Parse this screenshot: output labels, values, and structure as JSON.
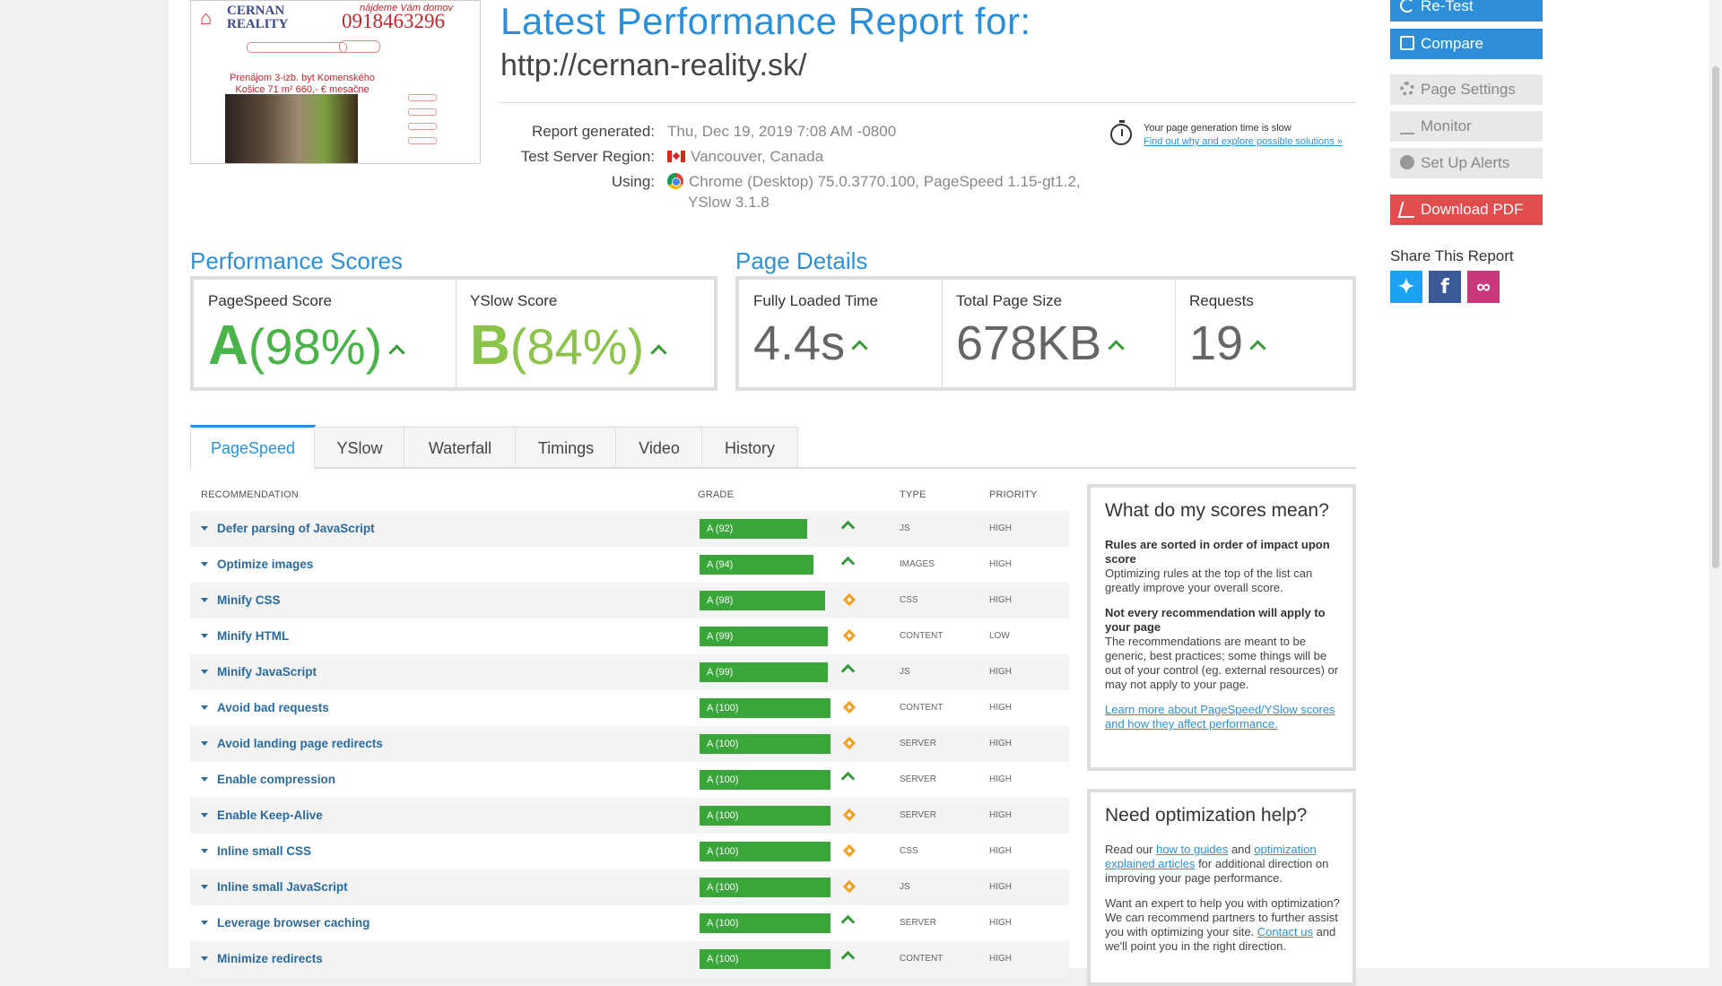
{
  "thumbnail": {
    "brand": "CERNAN REALITY",
    "tagline": "nájdeme Vám domov",
    "phone": "0918463296",
    "listing": "Prenájom 3-izb. byt Komenského Košice 71 m² 660,- € mesačne"
  },
  "header": {
    "title": "Latest Performance Report for:",
    "url": "http://cernan-reality.sk/",
    "report_generated_label": "Report generated:",
    "report_generated_value": "Thu, Dec 19, 2019 7:08 AM -0800",
    "region_label": "Test Server Region:",
    "region_value": "Vancouver, Canada",
    "using_label": "Using:",
    "using_value_line1": "Chrome (Desktop) 75.0.3770.100, PageSpeed 1.15-gt1.2,",
    "using_value_line2": "YSlow 3.1.8",
    "slow_notice": "Your page generation time is slow",
    "slow_link": "Find out why and explore possible solutions »"
  },
  "performance": {
    "title": "Performance Scores",
    "pagespeed_label": "PageSpeed Score",
    "pagespeed_grade": "A",
    "pagespeed_pct": "(98%)",
    "yslow_label": "YSlow Score",
    "yslow_grade": "B",
    "yslow_pct": "(84%)"
  },
  "details": {
    "title": "Page Details",
    "loaded_label": "Fully Loaded Time",
    "loaded_value": "4.4s",
    "size_label": "Total Page Size",
    "size_value": "678KB",
    "requests_label": "Requests",
    "requests_value": "19"
  },
  "tabs": [
    "PageSpeed",
    "YSlow",
    "Waterfall",
    "Timings",
    "Video",
    "History"
  ],
  "table": {
    "headers": {
      "recommendation": "RECOMMENDATION",
      "grade": "GRADE",
      "type": "TYPE",
      "priority": "PRIORITY"
    },
    "rows": [
      {
        "rec": "Defer parsing of JavaScript",
        "grade": "A (92)",
        "score": 92,
        "trend": "up",
        "type": "JS",
        "priority": "HIGH"
      },
      {
        "rec": "Optimize images",
        "grade": "A (94)",
        "score": 94,
        "trend": "up",
        "type": "IMAGES",
        "priority": "HIGH"
      },
      {
        "rec": "Minify CSS",
        "grade": "A (98)",
        "score": 98,
        "trend": "same",
        "type": "CSS",
        "priority": "HIGH"
      },
      {
        "rec": "Minify HTML",
        "grade": "A (99)",
        "score": 99,
        "trend": "same",
        "type": "CONTENT",
        "priority": "LOW"
      },
      {
        "rec": "Minify JavaScript",
        "grade": "A (99)",
        "score": 99,
        "trend": "up",
        "type": "JS",
        "priority": "HIGH"
      },
      {
        "rec": "Avoid bad requests",
        "grade": "A (100)",
        "score": 100,
        "trend": "same",
        "type": "CONTENT",
        "priority": "HIGH"
      },
      {
        "rec": "Avoid landing page redirects",
        "grade": "A (100)",
        "score": 100,
        "trend": "same",
        "type": "SERVER",
        "priority": "HIGH"
      },
      {
        "rec": "Enable compression",
        "grade": "A (100)",
        "score": 100,
        "trend": "up",
        "type": "SERVER",
        "priority": "HIGH"
      },
      {
        "rec": "Enable Keep-Alive",
        "grade": "A (100)",
        "score": 100,
        "trend": "same",
        "type": "SERVER",
        "priority": "HIGH"
      },
      {
        "rec": "Inline small CSS",
        "grade": "A (100)",
        "score": 100,
        "trend": "same",
        "type": "CSS",
        "priority": "HIGH"
      },
      {
        "rec": "Inline small JavaScript",
        "grade": "A (100)",
        "score": 100,
        "trend": "same",
        "type": "JS",
        "priority": "HIGH"
      },
      {
        "rec": "Leverage browser caching",
        "grade": "A (100)",
        "score": 100,
        "trend": "up",
        "type": "SERVER",
        "priority": "HIGH"
      },
      {
        "rec": "Minimize redirects",
        "grade": "A (100)",
        "score": 100,
        "trend": "up",
        "type": "CONTENT",
        "priority": "HIGH"
      }
    ]
  },
  "scores_info": {
    "title": "What do my scores mean?",
    "h1": "Rules are sorted in order of impact upon score",
    "p1": "Optimizing rules at the top of the list can greatly improve your overall score.",
    "h2": "Not every recommendation will apply to your page",
    "p2": "The recommendations are meant to be generic, best practices; some things will be out of your control (eg. external resources) or may not apply to your page.",
    "link": "Learn more about PageSpeed/YSlow scores and how they affect performance."
  },
  "help_info": {
    "title": "Need optimization help?",
    "p1_a": "Read our ",
    "p1_link1": "how to guides",
    "p1_b": " and ",
    "p1_link2": "optimization explained articles",
    "p1_c": " for additional direction on improving your page performance.",
    "p2_a": "Want an expert to help you with optimization? We can recommend partners to further assist you with optimizing your site. ",
    "p2_link": "Contact us",
    "p2_b": " and we'll point you in the right direction."
  },
  "sidebar": {
    "retest": "Re-Test",
    "compare": "Compare",
    "page_settings": "Page Settings",
    "monitor": "Monitor",
    "alerts": "Set Up Alerts",
    "pdf": "Download PDF",
    "share_title": "Share This Report"
  },
  "colors": {
    "accent": "#2d8fd7",
    "grade_a": "#3aa53a",
    "pdf": "#e24c4c"
  }
}
